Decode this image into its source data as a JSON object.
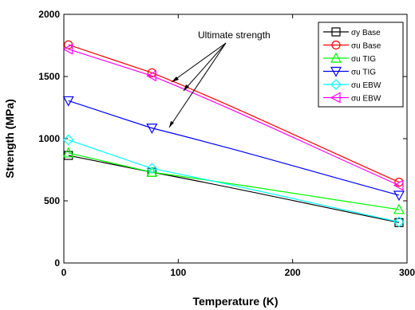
{
  "chart_data": {
    "type": "line",
    "xlabel": "Temperature (K)",
    "ylabel": "Strength (MPa)",
    "xlim": [
      0,
      300
    ],
    "ylim": [
      0,
      2000
    ],
    "xticks": [
      0,
      100,
      200,
      300
    ],
    "yticks": [
      0,
      500,
      1000,
      1500,
      2000
    ],
    "legend_position": "top-right",
    "annotation": "Ultimate strength",
    "series": [
      {
        "name": "σy Base",
        "color": "#000000",
        "marker": "square",
        "x": [
          4,
          77,
          293
        ],
        "y": [
          865,
          730,
          325
        ]
      },
      {
        "name": "σu Base",
        "color": "#ff0000",
        "marker": "circle",
        "x": [
          4,
          77,
          293
        ],
        "y": [
          1755,
          1530,
          650
        ]
      },
      {
        "name": "σu TIG",
        "color": "#00ff00",
        "marker": "triangle-up",
        "x": [
          4,
          77,
          293
        ],
        "y": [
          885,
          730,
          430
        ]
      },
      {
        "name": "σu TIG",
        "color": "#0000ff",
        "marker": "triangle-down",
        "x": [
          4,
          77,
          293
        ],
        "y": [
          1305,
          1085,
          545
        ]
      },
      {
        "name": "σu EBW",
        "color": "#00ffff",
        "marker": "diamond",
        "x": [
          4,
          77,
          293
        ],
        "y": [
          990,
          760,
          330
        ]
      },
      {
        "name": "σu EBW",
        "color": "#ff00ff",
        "marker": "triangle-left",
        "x": [
          4,
          77,
          293
        ],
        "y": [
          1720,
          1505,
          625
        ]
      }
    ]
  }
}
